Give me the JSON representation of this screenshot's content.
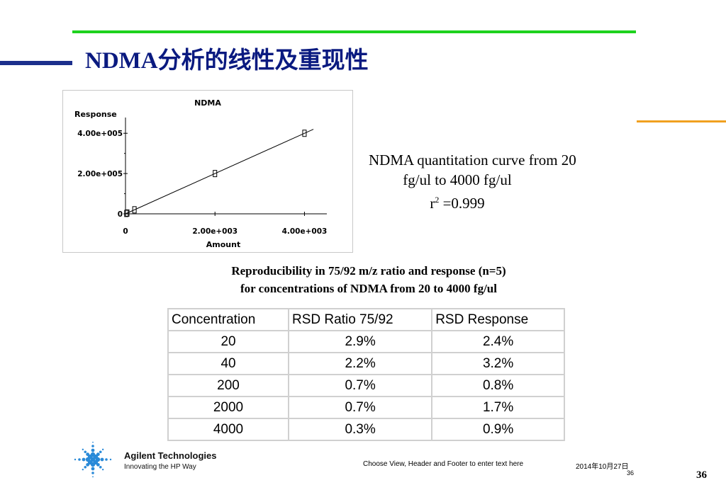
{
  "slide": {
    "title": "NDMA分析的线性及重现性",
    "caption_line1": "NDMA quantitation curve from 20",
    "caption_line2": "fg/ul to 4000 fg/ul",
    "caption_r": "r",
    "caption_sup": "2",
    "caption_val": " =0.999",
    "repro_line1": "Reproducibility in 75/92 m/z ratio and response (n=5)",
    "repro_line2": "for concentrations of NDMA from 20 to 4000 fg/ul"
  },
  "table": {
    "headers": [
      "Concentration",
      "RSD Ratio 75/92",
      "RSD Response"
    ],
    "rows": [
      [
        "20",
        "2.9%",
        "2.4%"
      ],
      [
        "40",
        "2.2%",
        "3.2%"
      ],
      [
        "200",
        "0.7%",
        "0.8%"
      ],
      [
        "2000",
        "0.7%",
        "1.7%"
      ],
      [
        "4000",
        "0.3%",
        "0.9%"
      ]
    ]
  },
  "footer": {
    "brand_name": "Agilent Technologies",
    "brand_tagline": "Innovating the HP Way",
    "center_text": "Choose View, Header and Footer to enter text here",
    "date": "2014年10月27日",
    "small_number": "36",
    "page_number": "36"
  },
  "colors": {
    "green_rule": "#1ed21e",
    "navy_rule": "#1c2f8c",
    "orange_rule": "#f0a020",
    "title": "#0a1a80",
    "logo": "#2a8ad8"
  },
  "chart_data": {
    "type": "scatter",
    "title": "NDMA",
    "ylabel": "Response",
    "xlabel": "Amount",
    "xlim": [
      0,
      4500
    ],
    "ylim": [
      0,
      450000
    ],
    "x_ticks": [
      {
        "value": 0,
        "label": "0"
      },
      {
        "value": 2000,
        "label": "2.00e+003"
      },
      {
        "value": 4000,
        "label": "4.00e+003"
      }
    ],
    "y_ticks": [
      {
        "value": 0,
        "label": "0"
      },
      {
        "value": 200000,
        "label": "2.00e+005"
      },
      {
        "value": 400000,
        "label": "4.00e+005"
      }
    ],
    "points": [
      {
        "x": 20,
        "y": 2000
      },
      {
        "x": 40,
        "y": 4000
      },
      {
        "x": 200,
        "y": 20000
      },
      {
        "x": 2000,
        "y": 200000
      },
      {
        "x": 4000,
        "y": 400000
      }
    ],
    "fit_line": {
      "x_start": 0,
      "x_end": 4200,
      "slope": 100,
      "intercept": 0
    }
  }
}
